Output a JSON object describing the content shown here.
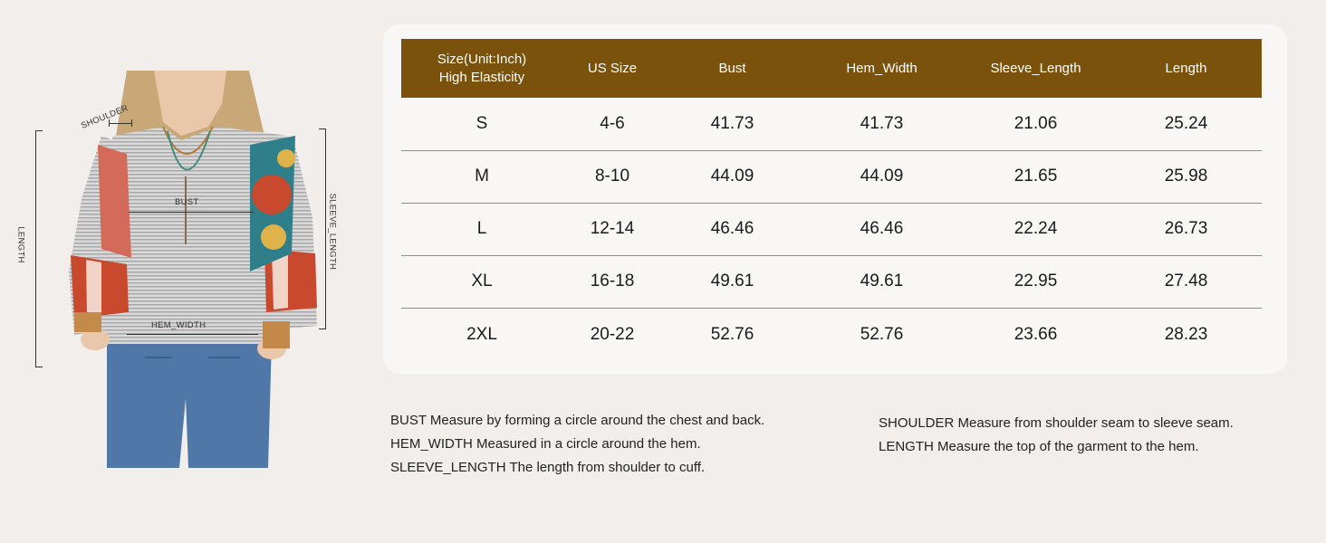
{
  "figure": {
    "labels": {
      "shoulder": "SHOULDER",
      "bust": "BUST",
      "length": "LENGTH",
      "sleeve_length": "SLEEVE_LENGTH",
      "hem_width": "HEM_WIDTH"
    },
    "colors": {
      "top_stripe": "#c9c9c9",
      "patch_red": "#c9492e",
      "patch_teal": "#2f7f8a",
      "jeans": "#4f78a8",
      "skin": "#e9c7ab"
    }
  },
  "table": {
    "header_bg": "#7b520c",
    "headers": {
      "size_line1": "Size(Unit:Inch)",
      "size_line2": "High Elasticity",
      "us_size": "US Size",
      "bust": "Bust",
      "hem_width": "Hem_Width",
      "sleeve_length": "Sleeve_Length",
      "length": "Length"
    },
    "rows": [
      {
        "size": "S",
        "us_size": "4-6",
        "bust": "41.73",
        "hem_width": "41.73",
        "sleeve_length": "21.06",
        "length": "25.24"
      },
      {
        "size": "M",
        "us_size": "8-10",
        "bust": "44.09",
        "hem_width": "44.09",
        "sleeve_length": "21.65",
        "length": "25.98"
      },
      {
        "size": "L",
        "us_size": "12-14",
        "bust": "46.46",
        "hem_width": "46.46",
        "sleeve_length": "22.24",
        "length": "26.73"
      },
      {
        "size": "XL",
        "us_size": "16-18",
        "bust": "49.61",
        "hem_width": "49.61",
        "sleeve_length": "22.95",
        "length": "27.48"
      },
      {
        "size": "2XL",
        "us_size": "20-22",
        "bust": "52.76",
        "hem_width": "52.76",
        "sleeve_length": "23.66",
        "length": "28.23"
      }
    ]
  },
  "notes": {
    "left": [
      "BUST Measure by forming a circle around the chest and back.",
      "HEM_WIDTH Measured in a circle around the hem.",
      "SLEEVE_LENGTH The length from shoulder to cuff."
    ],
    "right": [
      "SHOULDER Measure from shoulder seam to sleeve seam.",
      "LENGTH Measure the top of the garment to the hem."
    ]
  }
}
